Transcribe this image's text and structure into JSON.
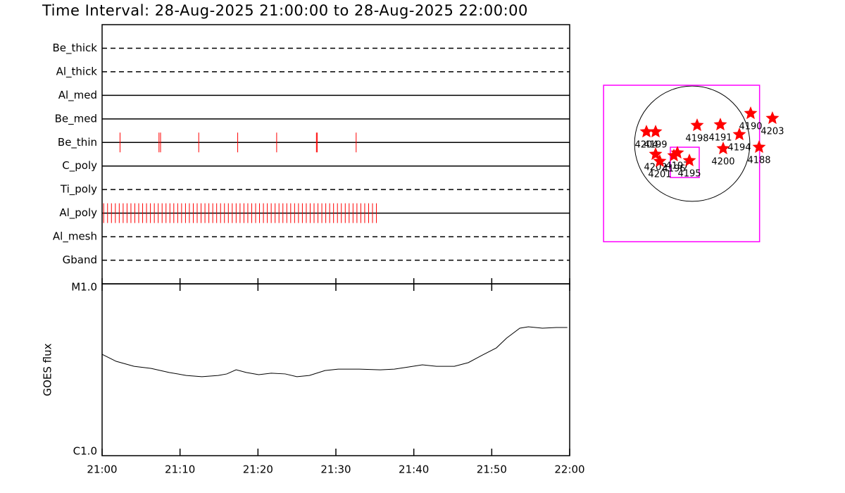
{
  "chart_data": [
    {
      "type": "timeline",
      "title": "Time Interval: 28-Aug-2025 21:00:00 to 28-Aug-2025 22:00:00",
      "categories": [
        "Be_thick",
        "Al_thick",
        "Al_med",
        "Be_med",
        "Be_thin",
        "C_poly",
        "Ti_poly",
        "Al_poly",
        "Al_mesh",
        "Gband"
      ],
      "linestyles": [
        "dashed",
        "dashed",
        "solid",
        "solid",
        "solid",
        "solid",
        "dashed",
        "solid",
        "dashed",
        "dashed"
      ],
      "events": [
        null,
        null,
        null,
        null,
        [
          2.3,
          7.3,
          7.5,
          12.4,
          17.4,
          22.4,
          27.5,
          27.6,
          32.6
        ],
        null,
        null,
        [
          0.2,
          0.7,
          1.2,
          1.7,
          2.2,
          2.7,
          3.2,
          3.7,
          4.2,
          4.7,
          5.2,
          5.7,
          6.2,
          6.7,
          7.2,
          7.7,
          8.2,
          8.7,
          9.2,
          9.7,
          10.2,
          10.7,
          11.2,
          11.7,
          12.2,
          12.7,
          13.2,
          13.7,
          14.2,
          14.7,
          15.2,
          15.7,
          16.2,
          16.7,
          17.2,
          17.7,
          18.2,
          18.7,
          19.2,
          19.7,
          20.2,
          20.7,
          21.2,
          21.7,
          22.2,
          22.7,
          23.2,
          23.7,
          24.2,
          24.7,
          25.2,
          25.7,
          26.2,
          26.7,
          27.2,
          27.7,
          28.2,
          28.7,
          29.2,
          29.7,
          30.2,
          30.7,
          31.2,
          31.7,
          32.2,
          32.7,
          33.2,
          33.7,
          34.2,
          34.7,
          35.2
        ],
        null,
        null
      ],
      "color": "#ff0000",
      "xlim": [
        0,
        60
      ]
    },
    {
      "type": "line",
      "ylabel": "GOES flux",
      "x": [
        0,
        1.8,
        4.1,
        6.3,
        8.6,
        10.8,
        12.8,
        14.9,
        16.0,
        17.2,
        18.5,
        20.1,
        21.7,
        23.5,
        25.0,
        26.6,
        28.6,
        30.3,
        33.0,
        35.7,
        37.5,
        39.3,
        41.1,
        42.9,
        45.2,
        47.0,
        48.8,
        50.6,
        51.9,
        53.6,
        54.7,
        56.5,
        58.3,
        59.7
      ],
      "values": [
        3.89e-06,
        3.54e-06,
        3.31e-06,
        3.22e-06,
        3.05e-06,
        2.93e-06,
        2.88e-06,
        2.93e-06,
        2.99e-06,
        3.16e-06,
        3.05e-06,
        2.96e-06,
        3.02e-06,
        2.99e-06,
        2.88e-06,
        2.93e-06,
        3.13e-06,
        3.19e-06,
        3.19e-06,
        3.16e-06,
        3.19e-06,
        3.28e-06,
        3.38e-06,
        3.31e-06,
        3.31e-06,
        3.48e-06,
        3.85e-06,
        4.24e-06,
        4.83e-06,
        5.52e-06,
        5.62e-06,
        5.52e-06,
        5.57e-06,
        5.57e-06
      ],
      "color": "#000000",
      "xlim": [
        0,
        60
      ],
      "xticks": [
        {
          "value": 0,
          "label": "21:00"
        },
        {
          "value": 10,
          "label": "21:10"
        },
        {
          "value": 20,
          "label": "21:20"
        },
        {
          "value": 30,
          "label": "21:30"
        },
        {
          "value": 40,
          "label": "21:40"
        },
        {
          "value": 50,
          "label": "21:50"
        },
        {
          "value": 60,
          "label": "22:00"
        }
      ],
      "ylim": [
        1e-06,
        1e-05
      ],
      "yticks": [
        {
          "value": 1e-06,
          "label": "C1.0"
        },
        {
          "value": 1e-05,
          "label": "M1.0"
        }
      ],
      "log_scale": true
    },
    {
      "type": "scatter",
      "x": [
        -754,
        -603,
        81,
        464,
        963,
        1322,
        777,
        510,
        1102,
        -603,
        -534,
        -302,
        -244,
        -46
      ],
      "y": [
        197,
        197,
        302,
        313,
        499,
        418,
        151,
        -81,
        -58,
        -174,
        -290,
        -197,
        -151,
        -278
      ],
      "labels": [
        "4204",
        "4199",
        "4198",
        "4191",
        "4190",
        "4203",
        "4194",
        "4200",
        "4188",
        "4202",
        "4201",
        "4196",
        "4197",
        "4195"
      ],
      "color": "#ff0000",
      "xlim": [
        -1550,
        1550
      ],
      "ylim": [
        -1800,
        1200
      ],
      "disk_radius": 950,
      "boxes": [
        {
          "x0": -1460,
          "x1": 1110,
          "y0": -1615,
          "y1": 963
        },
        {
          "x0": -360,
          "x1": 116,
          "y0": -557,
          "y1": -58
        }
      ],
      "box_color": "#ff00ff"
    }
  ]
}
